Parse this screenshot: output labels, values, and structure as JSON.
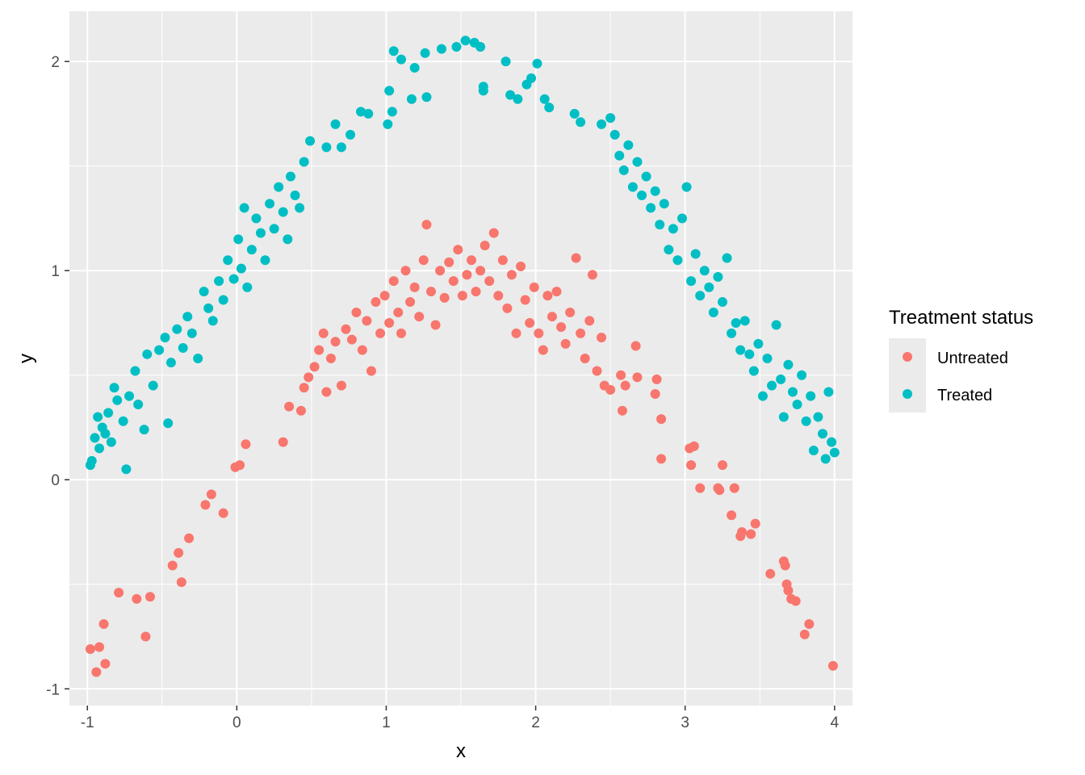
{
  "chart_data": {
    "type": "scatter",
    "title": "",
    "xlabel": "x",
    "ylabel": "y",
    "xlim": [
      -1.12,
      4.12
    ],
    "ylim": [
      -1.08,
      2.24
    ],
    "xticks": [
      -1,
      0,
      1,
      2,
      3,
      4
    ],
    "yticks": [
      -1,
      0,
      1,
      2
    ],
    "xtick_labels": [
      "-1",
      "0",
      "1",
      "2",
      "3",
      "4"
    ],
    "ytick_labels": [
      "-1",
      "0",
      "1",
      "2"
    ],
    "grid": true,
    "legend": {
      "title": "Treatment status",
      "placement": "right",
      "entries": [
        "Untreated",
        "Treated"
      ]
    },
    "series": [
      {
        "name": "Untreated",
        "color": "#F8766D",
        "points": [
          [
            -0.98,
            -0.81
          ],
          [
            -0.94,
            -0.92
          ],
          [
            -0.92,
            -0.8
          ],
          [
            -0.89,
            -0.69
          ],
          [
            -0.88,
            -0.88
          ],
          [
            -0.79,
            -0.54
          ],
          [
            -0.67,
            -0.57
          ],
          [
            -0.61,
            -0.75
          ],
          [
            -0.58,
            -0.56
          ],
          [
            -0.43,
            -0.41
          ],
          [
            -0.39,
            -0.35
          ],
          [
            -0.37,
            -0.49
          ],
          [
            -0.32,
            -0.28
          ],
          [
            -0.21,
            -0.12
          ],
          [
            -0.17,
            -0.07
          ],
          [
            -0.09,
            -0.16
          ],
          [
            -0.01,
            0.06
          ],
          [
            0.02,
            0.07
          ],
          [
            0.06,
            0.17
          ],
          [
            0.31,
            0.18
          ],
          [
            0.35,
            0.35
          ],
          [
            0.43,
            0.33
          ],
          [
            0.45,
            0.44
          ],
          [
            0.48,
            0.49
          ],
          [
            0.52,
            0.54
          ],
          [
            0.55,
            0.62
          ],
          [
            0.58,
            0.7
          ],
          [
            0.6,
            0.42
          ],
          [
            0.63,
            0.58
          ],
          [
            0.66,
            0.66
          ],
          [
            0.7,
            0.45
          ],
          [
            0.73,
            0.72
          ],
          [
            0.77,
            0.67
          ],
          [
            0.8,
            0.8
          ],
          [
            0.84,
            0.62
          ],
          [
            0.87,
            0.76
          ],
          [
            0.9,
            0.52
          ],
          [
            0.93,
            0.85
          ],
          [
            0.96,
            0.7
          ],
          [
            0.99,
            0.88
          ],
          [
            1.02,
            0.75
          ],
          [
            1.05,
            0.95
          ],
          [
            1.08,
            0.8
          ],
          [
            1.1,
            0.7
          ],
          [
            1.13,
            1.0
          ],
          [
            1.16,
            0.85
          ],
          [
            1.19,
            0.92
          ],
          [
            1.22,
            0.78
          ],
          [
            1.25,
            1.05
          ],
          [
            1.27,
            1.22
          ],
          [
            1.3,
            0.9
          ],
          [
            1.33,
            0.74
          ],
          [
            1.36,
            1.0
          ],
          [
            1.39,
            0.87
          ],
          [
            1.42,
            1.04
          ],
          [
            1.45,
            0.95
          ],
          [
            1.48,
            1.1
          ],
          [
            1.51,
            0.88
          ],
          [
            1.54,
            0.98
          ],
          [
            1.57,
            1.05
          ],
          [
            1.6,
            0.9
          ],
          [
            1.63,
            1.0
          ],
          [
            1.66,
            1.12
          ],
          [
            1.69,
            0.95
          ],
          [
            1.72,
            1.18
          ],
          [
            1.75,
            0.88
          ],
          [
            1.78,
            1.05
          ],
          [
            1.81,
            0.82
          ],
          [
            1.84,
            0.98
          ],
          [
            1.87,
            0.7
          ],
          [
            1.9,
            1.02
          ],
          [
            1.93,
            0.86
          ],
          [
            1.96,
            0.75
          ],
          [
            1.99,
            0.92
          ],
          [
            2.02,
            0.7
          ],
          [
            2.05,
            0.62
          ],
          [
            2.08,
            0.88
          ],
          [
            2.11,
            0.78
          ],
          [
            2.14,
            0.9
          ],
          [
            2.17,
            0.73
          ],
          [
            2.2,
            0.65
          ],
          [
            2.23,
            0.8
          ],
          [
            2.27,
            1.06
          ],
          [
            2.3,
            0.7
          ],
          [
            2.33,
            0.58
          ],
          [
            2.36,
            0.76
          ],
          [
            2.38,
            0.98
          ],
          [
            2.41,
            0.52
          ],
          [
            2.44,
            0.68
          ],
          [
            2.46,
            0.45
          ],
          [
            2.5,
            0.43
          ],
          [
            2.57,
            0.5
          ],
          [
            2.58,
            0.33
          ],
          [
            2.6,
            0.45
          ],
          [
            2.67,
            0.64
          ],
          [
            2.68,
            0.49
          ],
          [
            2.8,
            0.41
          ],
          [
            2.81,
            0.48
          ],
          [
            2.84,
            0.29
          ],
          [
            2.84,
            0.1
          ],
          [
            3.03,
            0.15
          ],
          [
            3.04,
            0.07
          ],
          [
            3.06,
            0.16
          ],
          [
            3.1,
            -0.04
          ],
          [
            3.22,
            -0.04
          ],
          [
            3.23,
            -0.05
          ],
          [
            3.25,
            0.07
          ],
          [
            3.31,
            -0.17
          ],
          [
            3.33,
            -0.04
          ],
          [
            3.37,
            -0.27
          ],
          [
            3.38,
            -0.25
          ],
          [
            3.44,
            -0.26
          ],
          [
            3.47,
            -0.21
          ],
          [
            3.57,
            -0.45
          ],
          [
            3.66,
            -0.39
          ],
          [
            3.67,
            -0.41
          ],
          [
            3.68,
            -0.5
          ],
          [
            3.69,
            -0.53
          ],
          [
            3.71,
            -0.57
          ],
          [
            3.74,
            -0.58
          ],
          [
            3.8,
            -0.74
          ],
          [
            3.83,
            -0.69
          ],
          [
            3.99,
            -0.89
          ]
        ]
      },
      {
        "name": "Treated",
        "color": "#00BFC4",
        "points": [
          [
            -0.98,
            0.07
          ],
          [
            -0.97,
            0.09
          ],
          [
            -0.95,
            0.2
          ],
          [
            -0.93,
            0.3
          ],
          [
            -0.92,
            0.15
          ],
          [
            -0.9,
            0.25
          ],
          [
            -0.88,
            0.22
          ],
          [
            -0.86,
            0.32
          ],
          [
            -0.84,
            0.18
          ],
          [
            -0.82,
            0.44
          ],
          [
            -0.8,
            0.38
          ],
          [
            -0.76,
            0.28
          ],
          [
            -0.74,
            0.05
          ],
          [
            -0.72,
            0.4
          ],
          [
            -0.68,
            0.52
          ],
          [
            -0.66,
            0.36
          ],
          [
            -0.62,
            0.24
          ],
          [
            -0.6,
            0.6
          ],
          [
            -0.56,
            0.45
          ],
          [
            -0.52,
            0.62
          ],
          [
            -0.48,
            0.68
          ],
          [
            -0.46,
            0.27
          ],
          [
            -0.44,
            0.56
          ],
          [
            -0.4,
            0.72
          ],
          [
            -0.36,
            0.63
          ],
          [
            -0.33,
            0.78
          ],
          [
            -0.3,
            0.7
          ],
          [
            -0.26,
            0.58
          ],
          [
            -0.22,
            0.9
          ],
          [
            -0.19,
            0.82
          ],
          [
            -0.16,
            0.76
          ],
          [
            -0.12,
            0.95
          ],
          [
            -0.09,
            0.86
          ],
          [
            -0.06,
            1.05
          ],
          [
            -0.02,
            0.96
          ],
          [
            0.01,
            1.15
          ],
          [
            0.03,
            1.01
          ],
          [
            0.05,
            1.3
          ],
          [
            0.07,
            0.92
          ],
          [
            0.1,
            1.1
          ],
          [
            0.13,
            1.25
          ],
          [
            0.16,
            1.18
          ],
          [
            0.19,
            1.05
          ],
          [
            0.22,
            1.32
          ],
          [
            0.25,
            1.2
          ],
          [
            0.28,
            1.4
          ],
          [
            0.31,
            1.28
          ],
          [
            0.34,
            1.15
          ],
          [
            0.36,
            1.45
          ],
          [
            0.39,
            1.36
          ],
          [
            0.42,
            1.3
          ],
          [
            0.45,
            1.52
          ],
          [
            0.49,
            1.62
          ],
          [
            0.6,
            1.59
          ],
          [
            0.66,
            1.7
          ],
          [
            0.7,
            1.59
          ],
          [
            0.76,
            1.65
          ],
          [
            0.83,
            1.76
          ],
          [
            0.88,
            1.75
          ],
          [
            1.01,
            1.7
          ],
          [
            1.04,
            1.76
          ],
          [
            1.02,
            1.86
          ],
          [
            1.05,
            2.05
          ],
          [
            1.1,
            2.01
          ],
          [
            1.17,
            1.82
          ],
          [
            1.19,
            1.97
          ],
          [
            1.26,
            2.04
          ],
          [
            1.27,
            1.83
          ],
          [
            1.37,
            2.06
          ],
          [
            1.47,
            2.07
          ],
          [
            1.53,
            2.1
          ],
          [
            1.59,
            2.09
          ],
          [
            1.63,
            2.07
          ],
          [
            1.65,
            1.88
          ],
          [
            1.65,
            1.86
          ],
          [
            1.8,
            2.0
          ],
          [
            1.83,
            1.84
          ],
          [
            1.88,
            1.82
          ],
          [
            1.94,
            1.89
          ],
          [
            1.97,
            1.92
          ],
          [
            2.01,
            1.99
          ],
          [
            2.06,
            1.82
          ],
          [
            2.09,
            1.78
          ],
          [
            2.26,
            1.75
          ],
          [
            2.3,
            1.71
          ],
          [
            2.44,
            1.7
          ],
          [
            2.5,
            1.73
          ],
          [
            2.53,
            1.65
          ],
          [
            2.56,
            1.55
          ],
          [
            2.59,
            1.48
          ],
          [
            2.62,
            1.6
          ],
          [
            2.65,
            1.4
          ],
          [
            2.68,
            1.52
          ],
          [
            2.71,
            1.36
          ],
          [
            2.74,
            1.45
          ],
          [
            2.77,
            1.3
          ],
          [
            2.8,
            1.38
          ],
          [
            2.83,
            1.22
          ],
          [
            2.86,
            1.32
          ],
          [
            2.89,
            1.1
          ],
          [
            2.92,
            1.2
          ],
          [
            2.95,
            1.05
          ],
          [
            2.98,
            1.25
          ],
          [
            3.01,
            1.4
          ],
          [
            3.04,
            0.95
          ],
          [
            3.07,
            1.08
          ],
          [
            3.1,
            0.88
          ],
          [
            3.13,
            1.0
          ],
          [
            3.16,
            0.92
          ],
          [
            3.19,
            0.8
          ],
          [
            3.22,
            0.97
          ],
          [
            3.25,
            0.85
          ],
          [
            3.28,
            1.06
          ],
          [
            3.31,
            0.7
          ],
          [
            3.34,
            0.75
          ],
          [
            3.37,
            0.62
          ],
          [
            3.4,
            0.76
          ],
          [
            3.43,
            0.6
          ],
          [
            3.46,
            0.52
          ],
          [
            3.49,
            0.65
          ],
          [
            3.52,
            0.4
          ],
          [
            3.55,
            0.58
          ],
          [
            3.58,
            0.45
          ],
          [
            3.61,
            0.74
          ],
          [
            3.64,
            0.48
          ],
          [
            3.66,
            0.3
          ],
          [
            3.69,
            0.55
          ],
          [
            3.72,
            0.42
          ],
          [
            3.75,
            0.36
          ],
          [
            3.78,
            0.5
          ],
          [
            3.81,
            0.28
          ],
          [
            3.84,
            0.4
          ],
          [
            3.86,
            0.14
          ],
          [
            3.89,
            0.3
          ],
          [
            3.92,
            0.22
          ],
          [
            3.94,
            0.1
          ],
          [
            3.96,
            0.42
          ],
          [
            3.98,
            0.18
          ],
          [
            4.0,
            0.13
          ]
        ]
      }
    ]
  }
}
